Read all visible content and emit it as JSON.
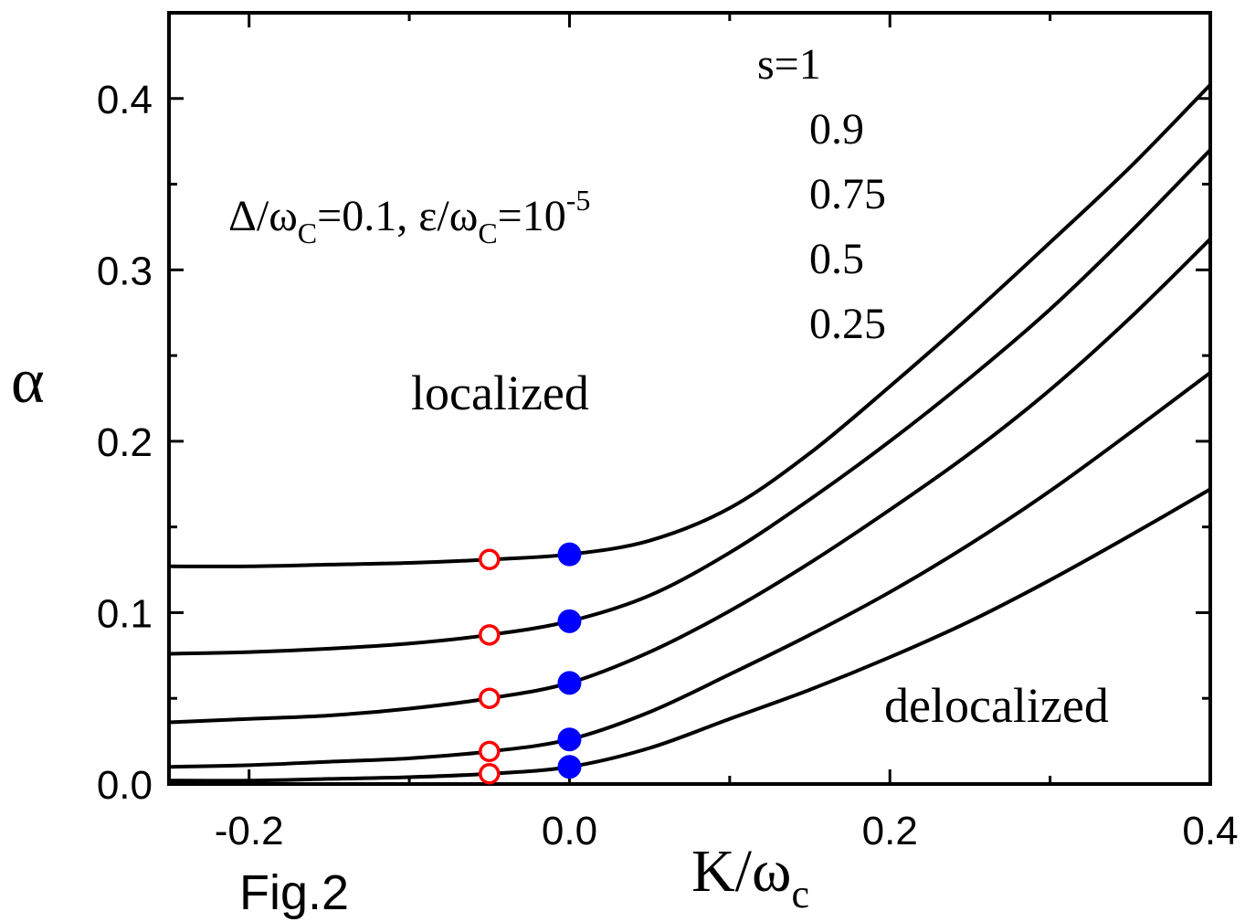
{
  "chart_data": {
    "type": "line",
    "xlabel": {
      "main": "K/ω",
      "sub": "c"
    },
    "ylabel": "α",
    "xlim": [
      -0.25,
      0.4
    ],
    "ylim": [
      0.0,
      0.45
    ],
    "x_ticks": [
      -0.2,
      0.0,
      0.2,
      0.4
    ],
    "x_tick_labels": [
      "-0.2",
      "0.0",
      "0.2",
      "0.4"
    ],
    "y_ticks": [
      0.0,
      0.1,
      0.2,
      0.3,
      0.4
    ],
    "y_tick_labels": [
      "0.0",
      "0.1",
      "0.2",
      "0.3",
      "0.4"
    ],
    "grid": false,
    "legend_title": "s=1",
    "legend_entries": [
      "0.9",
      "0.75",
      "0.5",
      "0.25"
    ],
    "parameters": {
      "delta_symbol": "Δ/ω",
      "sub_c": "C",
      "delta_value": "=0.1, ",
      "eps_symbol": "ε/ω",
      "eps_value": "=10",
      "eps_exp": "-5"
    },
    "annotations": {
      "localized": "localized",
      "delocalized": "delocalized"
    },
    "figure_label": "Fig.2",
    "series": [
      {
        "s": 1,
        "x": [
          -0.25,
          -0.2,
          -0.15,
          -0.1,
          -0.05,
          0.0,
          0.05,
          0.1,
          0.15,
          0.2,
          0.25,
          0.3,
          0.35,
          0.4
        ],
        "y": [
          0.127,
          0.127,
          0.128,
          0.129,
          0.131,
          0.134,
          0.142,
          0.161,
          0.193,
          0.232,
          0.273,
          0.316,
          0.36,
          0.408
        ]
      },
      {
        "s": 0.9,
        "x": [
          -0.25,
          -0.2,
          -0.15,
          -0.1,
          -0.05,
          0.0,
          0.05,
          0.1,
          0.15,
          0.2,
          0.25,
          0.3,
          0.35,
          0.4
        ],
        "y": [
          0.076,
          0.077,
          0.079,
          0.082,
          0.087,
          0.095,
          0.11,
          0.135,
          0.166,
          0.2,
          0.237,
          0.277,
          0.322,
          0.37
        ]
      },
      {
        "s": 0.75,
        "x": [
          -0.25,
          -0.2,
          -0.15,
          -0.1,
          -0.05,
          0.0,
          0.05,
          0.1,
          0.15,
          0.2,
          0.25,
          0.3,
          0.35,
          0.4
        ],
        "y": [
          0.036,
          0.038,
          0.04,
          0.044,
          0.05,
          0.059,
          0.077,
          0.101,
          0.129,
          0.16,
          0.193,
          0.23,
          0.272,
          0.318
        ]
      },
      {
        "s": 0.5,
        "x": [
          -0.25,
          -0.2,
          -0.15,
          -0.1,
          -0.05,
          0.0,
          0.05,
          0.1,
          0.15,
          0.2,
          0.25,
          0.3,
          0.35,
          0.4
        ],
        "y": [
          0.01,
          0.011,
          0.013,
          0.015,
          0.019,
          0.026,
          0.042,
          0.064,
          0.087,
          0.112,
          0.14,
          0.171,
          0.205,
          0.24
        ]
      },
      {
        "s": 0.25,
        "x": [
          -0.25,
          -0.2,
          -0.15,
          -0.1,
          -0.05,
          0.0,
          0.05,
          0.1,
          0.15,
          0.2,
          0.25,
          0.3,
          0.35,
          0.4
        ],
        "y": [
          0.002,
          0.002,
          0.003,
          0.004,
          0.006,
          0.01,
          0.021,
          0.038,
          0.055,
          0.074,
          0.095,
          0.119,
          0.145,
          0.172
        ]
      }
    ],
    "open_markers": {
      "color": "#ff0000",
      "points": [
        {
          "x": -0.05,
          "y": 0.131
        },
        {
          "x": -0.05,
          "y": 0.087
        },
        {
          "x": -0.05,
          "y": 0.05
        },
        {
          "x": -0.05,
          "y": 0.019
        },
        {
          "x": -0.05,
          "y": 0.006
        }
      ]
    },
    "filled_markers": {
      "color": "#0000ff",
      "points": [
        {
          "x": 0.0,
          "y": 0.134
        },
        {
          "x": 0.0,
          "y": 0.095
        },
        {
          "x": 0.0,
          "y": 0.059
        },
        {
          "x": 0.0,
          "y": 0.026
        },
        {
          "x": 0.0,
          "y": 0.01
        }
      ]
    },
    "line_color": "#000000"
  }
}
